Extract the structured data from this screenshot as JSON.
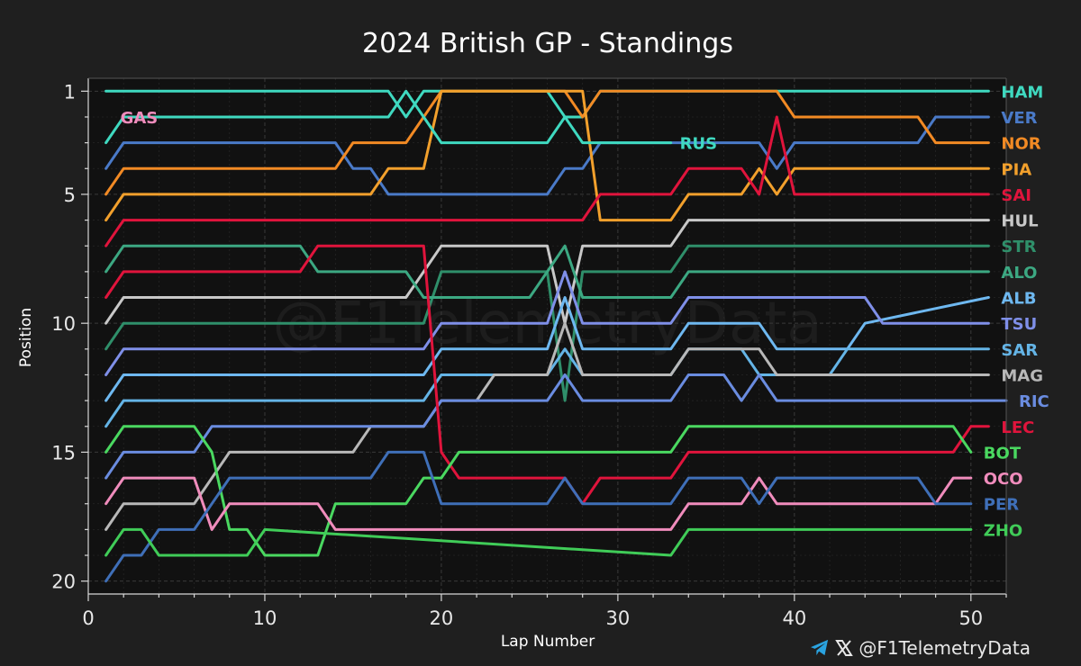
{
  "chart_data": {
    "type": "line",
    "title": "2024 British GP - Standings",
    "xlabel": "Lap Number",
    "ylabel": "Position",
    "xlim": [
      0,
      52
    ],
    "ylim": [
      20.5,
      0.5
    ],
    "xticks": [
      0,
      10,
      20,
      30,
      40,
      50
    ],
    "yticks": [
      1,
      5,
      10,
      15,
      20
    ],
    "watermark": "@F1TelemetryData",
    "series": [
      {
        "name": "HAM",
        "color": "#3fd9c0",
        "end_lap": 51,
        "positions": [
          [
            1,
            1
          ],
          [
            17,
            1
          ],
          [
            18,
            2
          ],
          [
            19,
            1
          ],
          [
            20,
            1
          ],
          [
            21,
            1
          ],
          [
            26,
            1
          ],
          [
            27,
            2
          ],
          [
            28,
            2
          ],
          [
            29,
            1
          ],
          [
            39,
            1
          ],
          [
            40,
            1
          ],
          [
            51,
            1
          ]
        ]
      },
      {
        "name": "VER",
        "color": "#4a7ac8",
        "end_lap": 51,
        "positions": [
          [
            1,
            4
          ],
          [
            2,
            3
          ],
          [
            14,
            3
          ],
          [
            15,
            4
          ],
          [
            16,
            4
          ],
          [
            17,
            5
          ],
          [
            26,
            5
          ],
          [
            27,
            4
          ],
          [
            28,
            4
          ],
          [
            29,
            3
          ],
          [
            38,
            3
          ],
          [
            39,
            4
          ],
          [
            40,
            3
          ],
          [
            47,
            3
          ],
          [
            48,
            2
          ],
          [
            51,
            2
          ]
        ]
      },
      {
        "name": "NOR",
        "color": "#f28a24",
        "end_lap": 51,
        "positions": [
          [
            1,
            5
          ],
          [
            2,
            4
          ],
          [
            14,
            4
          ],
          [
            15,
            3
          ],
          [
            18,
            3
          ],
          [
            19,
            2
          ],
          [
            20,
            1
          ],
          [
            27,
            1
          ],
          [
            28,
            2
          ],
          [
            29,
            1
          ],
          [
            39,
            1
          ],
          [
            40,
            2
          ],
          [
            47,
            2
          ],
          [
            48,
            3
          ],
          [
            51,
            3
          ]
        ]
      },
      {
        "name": "PIA",
        "color": "#f2a02c",
        "end_lap": 51,
        "positions": [
          [
            1,
            6
          ],
          [
            2,
            5
          ],
          [
            16,
            5
          ],
          [
            17,
            4
          ],
          [
            19,
            4
          ],
          [
            20,
            1
          ],
          [
            27,
            1
          ],
          [
            28,
            1
          ],
          [
            29,
            6
          ],
          [
            33,
            6
          ],
          [
            34,
            5
          ],
          [
            37,
            5
          ],
          [
            38,
            4
          ],
          [
            39,
            5
          ],
          [
            40,
            4
          ],
          [
            51,
            4
          ]
        ]
      },
      {
        "name": "SAI",
        "color": "#e0143c",
        "end_lap": 51,
        "positions": [
          [
            1,
            7
          ],
          [
            2,
            6
          ],
          [
            28,
            6
          ],
          [
            29,
            5
          ],
          [
            33,
            5
          ],
          [
            34,
            4
          ],
          [
            37,
            4
          ],
          [
            38,
            5
          ],
          [
            39,
            2
          ],
          [
            40,
            5
          ],
          [
            51,
            5
          ]
        ]
      },
      {
        "name": "HUL",
        "color": "#c8c8c8",
        "end_lap": 51,
        "positions": [
          [
            1,
            10
          ],
          [
            2,
            9
          ],
          [
            18,
            9
          ],
          [
            19,
            8
          ],
          [
            20,
            7
          ],
          [
            26,
            7
          ],
          [
            27,
            10
          ],
          [
            28,
            7
          ],
          [
            33,
            7
          ],
          [
            34,
            6
          ],
          [
            51,
            6
          ]
        ]
      },
      {
        "name": "STR",
        "color": "#2f8f6a",
        "end_lap": 51,
        "positions": [
          [
            1,
            11
          ],
          [
            2,
            10
          ],
          [
            19,
            10
          ],
          [
            20,
            8
          ],
          [
            26,
            8
          ],
          [
            27,
            13
          ],
          [
            28,
            8
          ],
          [
            33,
            8
          ],
          [
            34,
            7
          ],
          [
            51,
            7
          ]
        ]
      },
      {
        "name": "ALO",
        "color": "#3ca882",
        "end_lap": 51,
        "positions": [
          [
            1,
            8
          ],
          [
            2,
            7
          ],
          [
            12,
            7
          ],
          [
            13,
            8
          ],
          [
            18,
            8
          ],
          [
            19,
            9
          ],
          [
            20,
            9
          ],
          [
            25,
            9
          ],
          [
            26,
            8
          ],
          [
            27,
            7
          ],
          [
            28,
            9
          ],
          [
            33,
            9
          ],
          [
            34,
            8
          ],
          [
            51,
            8
          ]
        ]
      },
      {
        "name": "ALB",
        "color": "#6eb8f0",
        "end_lap": 51,
        "positions": [
          [
            1,
            13
          ],
          [
            2,
            12
          ],
          [
            19,
            12
          ],
          [
            20,
            11
          ],
          [
            26,
            11
          ],
          [
            27,
            9
          ],
          [
            28,
            11
          ],
          [
            33,
            11
          ],
          [
            34,
            10
          ],
          [
            38,
            10
          ],
          [
            39,
            11
          ],
          [
            40,
            11
          ],
          [
            43,
            11
          ],
          [
            44,
            10
          ],
          [
            51,
            9
          ]
        ]
      },
      {
        "name": "TSU",
        "color": "#7f8fe8",
        "end_lap": 51,
        "positions": [
          [
            1,
            12
          ],
          [
            2,
            11
          ],
          [
            19,
            11
          ],
          [
            20,
            10
          ],
          [
            26,
            10
          ],
          [
            27,
            8
          ],
          [
            28,
            10
          ],
          [
            33,
            10
          ],
          [
            34,
            9
          ],
          [
            44,
            9
          ],
          [
            45,
            10
          ],
          [
            51,
            10
          ]
        ]
      },
      {
        "name": "SAR",
        "color": "#64b4e6",
        "end_lap": 51,
        "positions": [
          [
            1,
            14
          ],
          [
            2,
            13
          ],
          [
            19,
            13
          ],
          [
            20,
            12
          ],
          [
            26,
            12
          ],
          [
            27,
            11
          ],
          [
            28,
            12
          ],
          [
            33,
            12
          ],
          [
            34,
            11
          ],
          [
            37,
            11
          ],
          [
            38,
            12
          ],
          [
            42,
            12
          ],
          [
            43,
            11
          ],
          [
            51,
            11
          ]
        ]
      },
      {
        "name": "MAG",
        "color": "#b8b8b8",
        "end_lap": 51,
        "positions": [
          [
            1,
            18
          ],
          [
            2,
            17
          ],
          [
            6,
            17
          ],
          [
            7,
            16
          ],
          [
            8,
            15
          ],
          [
            15,
            15
          ],
          [
            16,
            14
          ],
          [
            19,
            14
          ],
          [
            20,
            13
          ],
          [
            22,
            13
          ],
          [
            23,
            12
          ],
          [
            26,
            12
          ],
          [
            27,
            10
          ],
          [
            28,
            12
          ],
          [
            33,
            12
          ],
          [
            34,
            11
          ],
          [
            38,
            11
          ],
          [
            39,
            12
          ],
          [
            43,
            12
          ],
          [
            44,
            12
          ],
          [
            51,
            12
          ]
        ]
      },
      {
        "name": "RIC",
        "color": "#6a8ce0",
        "end_lap": 52,
        "positions": [
          [
            1,
            16
          ],
          [
            2,
            15
          ],
          [
            6,
            15
          ],
          [
            7,
            14
          ],
          [
            19,
            14
          ],
          [
            20,
            13
          ],
          [
            26,
            13
          ],
          [
            27,
            12
          ],
          [
            28,
            13
          ],
          [
            33,
            13
          ],
          [
            34,
            12
          ],
          [
            36,
            12
          ],
          [
            37,
            13
          ],
          [
            38,
            12
          ],
          [
            39,
            13
          ],
          [
            52,
            13
          ]
        ]
      },
      {
        "name": "LEC",
        "color": "#e0143c",
        "end_lap": 51,
        "positions": [
          [
            1,
            9
          ],
          [
            2,
            8
          ],
          [
            12,
            8
          ],
          [
            13,
            7
          ],
          [
            19,
            7
          ],
          [
            20,
            15
          ],
          [
            21,
            16
          ],
          [
            27,
            16
          ],
          [
            28,
            17
          ],
          [
            29,
            16
          ],
          [
            33,
            16
          ],
          [
            34,
            15
          ],
          [
            49,
            15
          ],
          [
            50,
            14
          ],
          [
            51,
            14
          ]
        ]
      },
      {
        "name": "BOT",
        "color": "#4ad860",
        "end_lap": 50,
        "positions": [
          [
            1,
            15
          ],
          [
            2,
            14
          ],
          [
            6,
            14
          ],
          [
            7,
            15
          ],
          [
            8,
            18
          ],
          [
            9,
            18
          ],
          [
            10,
            19
          ],
          [
            13,
            19
          ],
          [
            14,
            17
          ],
          [
            18,
            17
          ],
          [
            19,
            16
          ],
          [
            20,
            16
          ],
          [
            21,
            15
          ],
          [
            33,
            15
          ],
          [
            34,
            14
          ],
          [
            49,
            14
          ],
          [
            50,
            15
          ]
        ]
      },
      {
        "name": "OCO",
        "color": "#f08cbc",
        "end_lap": 50,
        "positions": [
          [
            1,
            17
          ],
          [
            2,
            16
          ],
          [
            6,
            16
          ],
          [
            7,
            18
          ],
          [
            8,
            17
          ],
          [
            13,
            17
          ],
          [
            14,
            18
          ],
          [
            33,
            18
          ],
          [
            34,
            17
          ],
          [
            37,
            17
          ],
          [
            38,
            16
          ],
          [
            39,
            17
          ],
          [
            48,
            17
          ],
          [
            49,
            16
          ],
          [
            50,
            16
          ]
        ]
      },
      {
        "name": "PER",
        "color": "#3f6fb8",
        "end_lap": 50,
        "positions": [
          [
            1,
            20
          ],
          [
            2,
            19
          ],
          [
            3,
            19
          ],
          [
            4,
            18
          ],
          [
            6,
            18
          ],
          [
            7,
            17
          ],
          [
            8,
            16
          ],
          [
            16,
            16
          ],
          [
            17,
            15
          ],
          [
            19,
            15
          ],
          [
            20,
            17
          ],
          [
            26,
            17
          ],
          [
            27,
            16
          ],
          [
            28,
            17
          ],
          [
            33,
            17
          ],
          [
            34,
            16
          ],
          [
            37,
            16
          ],
          [
            38,
            17
          ],
          [
            39,
            16
          ],
          [
            47,
            16
          ],
          [
            48,
            17
          ],
          [
            50,
            17
          ]
        ]
      },
      {
        "name": "ZHO",
        "color": "#40cc58",
        "end_lap": 50,
        "positions": [
          [
            1,
            19
          ],
          [
            2,
            18
          ],
          [
            3,
            18
          ],
          [
            4,
            19
          ],
          [
            9,
            19
          ],
          [
            10,
            18
          ],
          [
            33,
            19
          ],
          [
            34,
            18
          ],
          [
            50,
            18
          ]
        ]
      },
      {
        "name": "GAS",
        "color": "#f08cbc",
        "positions": [
          [
            1,
            2
          ]
        ]
      },
      {
        "name": "RUS",
        "color": "#3fd9c0",
        "positions": [
          [
            1,
            3
          ],
          [
            2,
            2
          ],
          [
            17,
            2
          ],
          [
            18,
            1
          ],
          [
            19,
            2
          ],
          [
            20,
            3
          ],
          [
            26,
            3
          ],
          [
            27,
            2
          ],
          [
            28,
            3
          ],
          [
            33,
            3
          ]
        ]
      }
    ]
  },
  "footer": {
    "handle": "@F1TelemetryData"
  }
}
